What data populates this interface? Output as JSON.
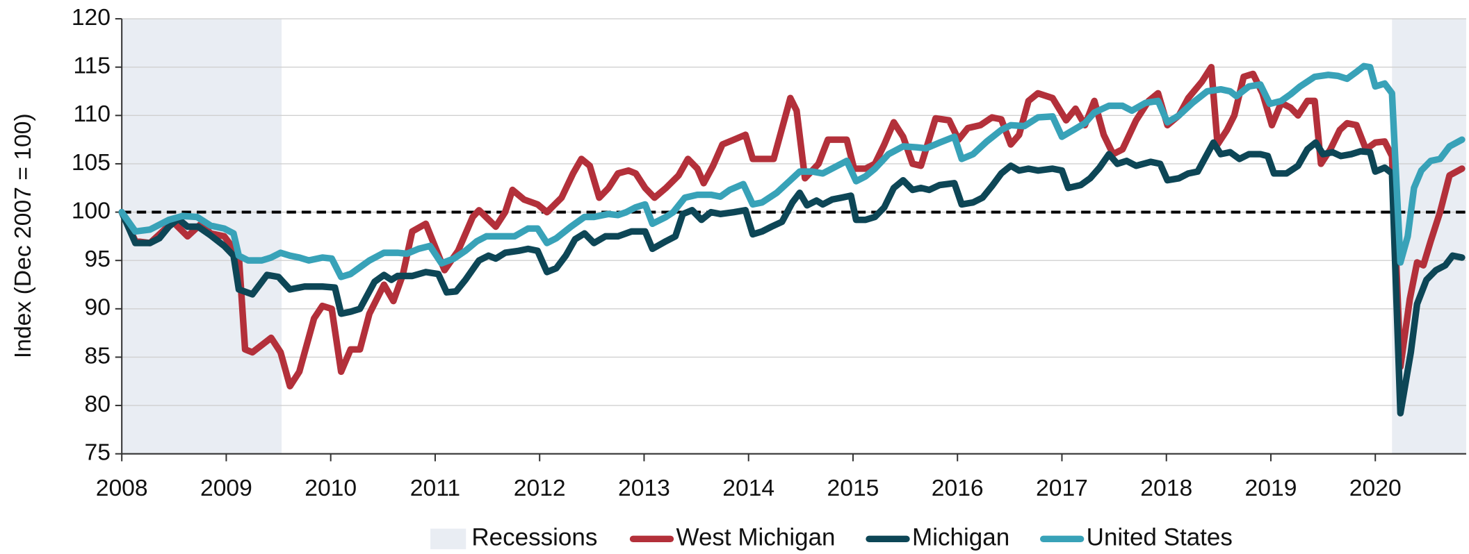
{
  "chart_data": {
    "type": "line",
    "y_label": "Index (Dec 2007 = 100)",
    "xlim": [
      2008,
      2020.87
    ],
    "xticks": [
      2008,
      2009,
      2010,
      2011,
      2012,
      2013,
      2014,
      2015,
      2016,
      2017,
      2018,
      2019,
      2020
    ],
    "ylim": [
      75,
      120
    ],
    "yticks": [
      75,
      80,
      85,
      90,
      95,
      100,
      105,
      110,
      115,
      120
    ],
    "grid": true,
    "reference_line": 100,
    "legend": "bottom",
    "recessions": {
      "name": "Recessions",
      "color": "#e9edf3",
      "spans": [
        [
          2008,
          2009.53
        ],
        [
          2020.16,
          2020.87
        ]
      ]
    },
    "series": [
      {
        "name": "West Michigan",
        "color": "#b3303a",
        "x": [
          2008,
          2008.13,
          2008.27,
          2008.49,
          2008.63,
          2008.76,
          2008.85,
          2008.98,
          2009.12,
          2009.18,
          2009.25,
          2009.43,
          2009.52,
          2009.61,
          2009.7,
          2009.84,
          2009.92,
          2010.01,
          2010.1,
          2010.19,
          2010.28,
          2010.37,
          2010.51,
          2010.6,
          2010.69,
          2010.78,
          2010.91,
          2011.09,
          2011.22,
          2011.36,
          2011.42,
          2011.58,
          2011.67,
          2011.74,
          2011.85,
          2011.98,
          2012.07,
          2012.21,
          2012.32,
          2012.4,
          2012.48,
          2012.57,
          2012.66,
          2012.75,
          2012.85,
          2012.92,
          2013.01,
          2013.1,
          2013.21,
          2013.33,
          2013.42,
          2013.51,
          2013.57,
          2013.66,
          2013.75,
          2013.86,
          2013.97,
          2014.04,
          2014.13,
          2014.24,
          2014.4,
          2014.46,
          2014.54,
          2014.67,
          2014.76,
          2014.85,
          2014.94,
          2015.01,
          2015.12,
          2015.21,
          2015.3,
          2015.39,
          2015.48,
          2015.57,
          2015.65,
          2015.79,
          2015.92,
          2016.01,
          2016.1,
          2016.22,
          2016.33,
          2016.42,
          2016.51,
          2016.59,
          2016.68,
          2016.77,
          2016.91,
          2017.04,
          2017.13,
          2017.22,
          2017.31,
          2017.4,
          2017.49,
          2017.58,
          2017.71,
          2017.83,
          2017.92,
          2018.01,
          2018.12,
          2018.21,
          2018.34,
          2018.43,
          2018.49,
          2018.58,
          2018.65,
          2018.74,
          2018.83,
          2018.92,
          2019.01,
          2019.1,
          2019.19,
          2019.26,
          2019.35,
          2019.42,
          2019.48,
          2019.57,
          2019.66,
          2019.73,
          2019.82,
          2019.91,
          2020,
          2020.09,
          2020.16,
          2020.24,
          2020.33,
          2020.4,
          2020.46,
          2020.53,
          2020.62,
          2020.71,
          2020.83
        ],
        "values": [
          100,
          97,
          96.8,
          99,
          97.5,
          98.8,
          97.8,
          97.5,
          95.5,
          85.8,
          85.5,
          87,
          85.5,
          82,
          83.5,
          89,
          90.3,
          90,
          83.5,
          85.8,
          85.8,
          89.5,
          92.5,
          90.8,
          93.5,
          98,
          98.8,
          94,
          96,
          99.5,
          100.2,
          98.5,
          100,
          102.3,
          101.3,
          100.8,
          100,
          101.5,
          104,
          105.5,
          104.8,
          101.5,
          102.5,
          104,
          104.3,
          104,
          102.5,
          101.5,
          102.5,
          103.8,
          105.5,
          104.5,
          103,
          104.8,
          107,
          107.5,
          108,
          105.5,
          105.5,
          105.5,
          111.8,
          110.5,
          103.5,
          105,
          107.5,
          107.5,
          107.5,
          104.5,
          104.5,
          105,
          107,
          109.3,
          107.8,
          105,
          104.8,
          109.7,
          109.5,
          107.5,
          108.7,
          109,
          109.8,
          109.6,
          107,
          108,
          111.5,
          112.3,
          111.8,
          109.5,
          110.7,
          109,
          111.5,
          108,
          106,
          106.5,
          109.5,
          111.5,
          112.3,
          109,
          110,
          111.8,
          113.5,
          115,
          107,
          108.5,
          110,
          114,
          114.3,
          112.3,
          109,
          111.3,
          110.8,
          110,
          111.5,
          111.5,
          105,
          106.5,
          108.5,
          109.2,
          109,
          106.5,
          107.2,
          107.3,
          105.8,
          84,
          91,
          94.8,
          94.5,
          97,
          100,
          103.8,
          104.5
        ]
      },
      {
        "name": "Michigan",
        "color": "#0d4656",
        "x": [
          2008,
          2008.13,
          2008.27,
          2008.36,
          2008.45,
          2008.54,
          2008.63,
          2008.73,
          2008.85,
          2008.98,
          2009.07,
          2009.12,
          2009.25,
          2009.39,
          2009.5,
          2009.61,
          2009.75,
          2009.92,
          2010.04,
          2010.1,
          2010.19,
          2010.28,
          2010.42,
          2010.51,
          2010.58,
          2010.64,
          2010.78,
          2010.91,
          2011.03,
          2011.11,
          2011.2,
          2011.29,
          2011.42,
          2011.51,
          2011.58,
          2011.67,
          2011.8,
          2011.89,
          2011.98,
          2012.07,
          2012.16,
          2012.25,
          2012.34,
          2012.43,
          2012.52,
          2012.63,
          2012.75,
          2012.88,
          2013.01,
          2013.08,
          2013.21,
          2013.3,
          2013.37,
          2013.46,
          2013.55,
          2013.64,
          2013.73,
          2013.86,
          2013.97,
          2014.04,
          2014.13,
          2014.22,
          2014.32,
          2014.42,
          2014.49,
          2014.56,
          2014.65,
          2014.71,
          2014.8,
          2014.89,
          2014.98,
          2015.03,
          2015.12,
          2015.21,
          2015.3,
          2015.39,
          2015.48,
          2015.57,
          2015.65,
          2015.73,
          2015.83,
          2015.97,
          2016.04,
          2016.15,
          2016.24,
          2016.33,
          2016.42,
          2016.51,
          2016.59,
          2016.68,
          2016.77,
          2016.91,
          2017,
          2017.06,
          2017.18,
          2017.27,
          2017.36,
          2017.45,
          2017.53,
          2017.62,
          2017.71,
          2017.85,
          2017.94,
          2018.01,
          2018.12,
          2018.21,
          2018.3,
          2018.39,
          2018.45,
          2018.52,
          2018.61,
          2018.7,
          2018.79,
          2018.9,
          2018.97,
          2019.03,
          2019.15,
          2019.26,
          2019.35,
          2019.43,
          2019.5,
          2019.59,
          2019.67,
          2019.77,
          2019.86,
          2019.95,
          2020,
          2020.09,
          2020.16,
          2020.24,
          2020.34,
          2020.4,
          2020.49,
          2020.58,
          2020.67,
          2020.74,
          2020.83
        ],
        "values": [
          100,
          96.8,
          96.8,
          97.3,
          98.5,
          99.3,
          98.5,
          98.5,
          97.6,
          96.5,
          95.5,
          92,
          91.5,
          93.5,
          93.3,
          92,
          92.3,
          92.3,
          92.2,
          89.5,
          89.7,
          90,
          92.8,
          93.5,
          93,
          93.4,
          93.4,
          93.8,
          93.6,
          91.7,
          91.8,
          93,
          95,
          95.5,
          95.2,
          95.8,
          96,
          96.2,
          96,
          93.8,
          94.2,
          95.5,
          97.2,
          97.8,
          96.8,
          97.5,
          97.5,
          98,
          98,
          96.2,
          97,
          97.5,
          99.8,
          100.2,
          99.2,
          100,
          99.8,
          100,
          100.2,
          97.7,
          98,
          98.5,
          99,
          101,
          102,
          100.7,
          101.2,
          100.8,
          101.3,
          101.5,
          101.7,
          99.2,
          99.2,
          99.5,
          100.5,
          102.5,
          103.3,
          102.3,
          102.5,
          102.3,
          102.8,
          103,
          100.8,
          101,
          101.5,
          102.7,
          104,
          104.8,
          104.3,
          104.5,
          104.3,
          104.5,
          104.3,
          102.5,
          102.8,
          103.5,
          104.6,
          106,
          105,
          105.3,
          104.8,
          105.2,
          105,
          103.3,
          103.5,
          104,
          104.2,
          106,
          107.2,
          106,
          106.2,
          105.5,
          106,
          106,
          105.8,
          104,
          104,
          104.8,
          106.5,
          107.2,
          106,
          106.2,
          105.8,
          106,
          106.3,
          106.2,
          104.2,
          104.6,
          104,
          79.2,
          85.5,
          90.5,
          93,
          94,
          94.5,
          95.5,
          95.3
        ]
      },
      {
        "name": "United States",
        "color": "#38a2b8",
        "x": [
          2008,
          2008.13,
          2008.27,
          2008.45,
          2008.58,
          2008.72,
          2008.85,
          2008.98,
          2009.07,
          2009.12,
          2009.21,
          2009.34,
          2009.43,
          2009.52,
          2009.61,
          2009.7,
          2009.79,
          2009.92,
          2010.01,
          2010.1,
          2010.19,
          2010.28,
          2010.37,
          2010.51,
          2010.64,
          2010.73,
          2010.84,
          2010.95,
          2011.06,
          2011.18,
          2011.29,
          2011.4,
          2011.49,
          2011.63,
          2011.76,
          2011.89,
          2011.98,
          2012.07,
          2012.16,
          2012.3,
          2012.43,
          2012.52,
          2012.66,
          2012.75,
          2012.83,
          2012.92,
          2013.01,
          2013.08,
          2013.21,
          2013.28,
          2013.39,
          2013.51,
          2013.64,
          2013.73,
          2013.82,
          2013.95,
          2014.04,
          2014.13,
          2014.27,
          2014.4,
          2014.49,
          2014.61,
          2014.71,
          2014.85,
          2014.94,
          2015.03,
          2015.12,
          2015.21,
          2015.34,
          2015.48,
          2015.61,
          2015.7,
          2015.83,
          2015.97,
          2016.04,
          2016.15,
          2016.28,
          2016.42,
          2016.51,
          2016.64,
          2016.77,
          2016.91,
          2017,
          2017.11,
          2017.22,
          2017.31,
          2017.45,
          2017.58,
          2017.67,
          2017.8,
          2017.92,
          2018.01,
          2018.12,
          2018.25,
          2018.39,
          2018.52,
          2018.61,
          2018.67,
          2018.79,
          2018.9,
          2018.99,
          2019.1,
          2019.19,
          2019.28,
          2019.42,
          2019.55,
          2019.64,
          2019.73,
          2019.82,
          2019.89,
          2019.95,
          2020,
          2020.09,
          2020.16,
          2020.24,
          2020.31,
          2020.37,
          2020.44,
          2020.53,
          2020.62,
          2020.71,
          2020.83
        ],
        "values": [
          100,
          98,
          98.2,
          99.2,
          99.6,
          99.5,
          98.6,
          98.3,
          97.8,
          95.5,
          95,
          95,
          95.3,
          95.8,
          95.5,
          95.3,
          95,
          95.3,
          95.2,
          93.3,
          93.6,
          94.3,
          95,
          95.8,
          95.8,
          95.7,
          96.2,
          96.5,
          94.7,
          95.2,
          96,
          97,
          97.5,
          97.5,
          97.5,
          98.3,
          98.3,
          96.8,
          97.3,
          98.5,
          99.5,
          99.5,
          99.8,
          99.7,
          100,
          100.5,
          100.8,
          98.8,
          99.5,
          100,
          101.5,
          101.8,
          101.8,
          101.6,
          102.3,
          102.9,
          100.8,
          101,
          102,
          103.3,
          104.2,
          104.2,
          104,
          104.8,
          105.3,
          103.2,
          103.7,
          104.5,
          106,
          106.8,
          106.7,
          106.6,
          107.2,
          107.8,
          105.5,
          106,
          107.3,
          108.5,
          109,
          108.9,
          109.8,
          109.9,
          107.8,
          108.5,
          109.2,
          110.3,
          111,
          111,
          110.5,
          111.3,
          111.5,
          109.3,
          110,
          111.3,
          112.5,
          112.7,
          112.5,
          112,
          113,
          113.2,
          111.2,
          111.5,
          112.2,
          113,
          114,
          114.2,
          114.1,
          113.8,
          114.5,
          115.1,
          115,
          113,
          113.3,
          112.3,
          94.8,
          97.5,
          102.5,
          104.3,
          105.3,
          105.5,
          106.8,
          107.5
        ]
      }
    ]
  }
}
